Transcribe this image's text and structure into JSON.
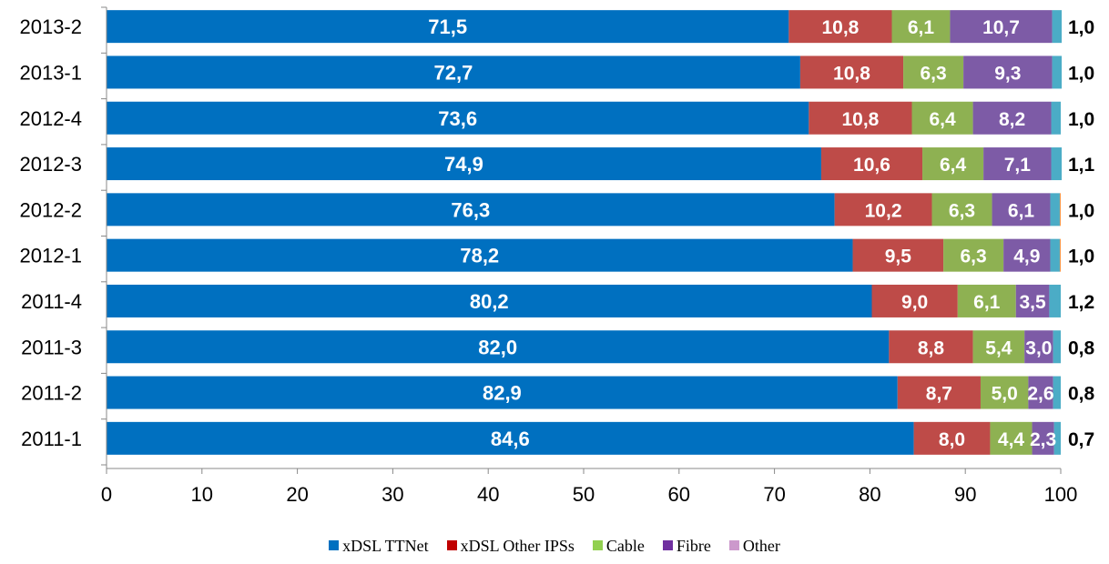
{
  "chart_data": {
    "type": "bar",
    "orientation": "horizontal",
    "stacked": true,
    "categories": [
      "2013-2",
      "2013-1",
      "2012-4",
      "2012-3",
      "2012-2",
      "2012-1",
      "2011-4",
      "2011-3",
      "2011-2",
      "2011-1"
    ],
    "series": [
      {
        "name": "xDSL TTNet",
        "color": "#0070C0",
        "values": [
          71.5,
          72.7,
          73.6,
          74.9,
          76.3,
          78.2,
          80.2,
          82.0,
          82.9,
          84.6
        ],
        "labels": [
          "71,5",
          "72,7",
          "73,6",
          "74,9",
          "76,3",
          "78,2",
          "80,2",
          "82,0",
          "82,9",
          "84,6"
        ]
      },
      {
        "name": "xDSL Other IPSs",
        "color": "#BE4B48",
        "values": [
          10.8,
          10.8,
          10.8,
          10.6,
          10.2,
          9.5,
          9.0,
          8.8,
          8.7,
          8.0
        ],
        "labels": [
          "10,8",
          "10,8",
          "10,8",
          "10,6",
          "10,2",
          "9,5",
          "9,0",
          "8,8",
          "8,7",
          "8,0"
        ]
      },
      {
        "name": "Cable",
        "color": "#8EB152",
        "values": [
          6.1,
          6.3,
          6.4,
          6.4,
          6.3,
          6.3,
          6.1,
          5.4,
          5.0,
          4.4
        ],
        "labels": [
          "6,1",
          "6,3",
          "6,4",
          "6,4",
          "6,3",
          "6,3",
          "6,1",
          "5,4",
          "5,0",
          "4,4"
        ]
      },
      {
        "name": "Fibre",
        "color": "#7D5BA6",
        "values": [
          10.7,
          9.3,
          8.2,
          7.1,
          6.1,
          4.9,
          3.5,
          3.0,
          2.6,
          2.3
        ],
        "labels": [
          "10,7",
          "9,3",
          "8,2",
          "7,1",
          "6,1",
          "4,9",
          "3,5",
          "3,0",
          "2,6",
          "2,3"
        ]
      },
      {
        "name": "Other",
        "color": "#4BACC6",
        "values": [
          1.0,
          1.0,
          1.0,
          1.1,
          1.0,
          1.0,
          1.2,
          0.8,
          0.8,
          0.7
        ],
        "labels": [
          "1,0",
          "1,0",
          "1,0",
          "1,1",
          "1,0",
          "1,0",
          "1,2",
          "0,8",
          "0,8",
          "0,7"
        ]
      }
    ],
    "xlim": [
      0,
      100
    ],
    "xticks": [
      "0",
      "10",
      "20",
      "30",
      "40",
      "50",
      "60",
      "70",
      "80",
      "90",
      "100"
    ],
    "grid": false,
    "legend_position": "bottom",
    "legend": [
      {
        "name": "xDSL TTNet",
        "color": "#0070C0"
      },
      {
        "name": "xDSL Other IPSs",
        "color": "#C00000"
      },
      {
        "name": "Cable",
        "color": "#92D050"
      },
      {
        "name": "Fibre",
        "color": "#7030A0"
      },
      {
        "name": "Other",
        "color": "#CC99CC"
      }
    ],
    "remainder_color": "#F79646"
  }
}
